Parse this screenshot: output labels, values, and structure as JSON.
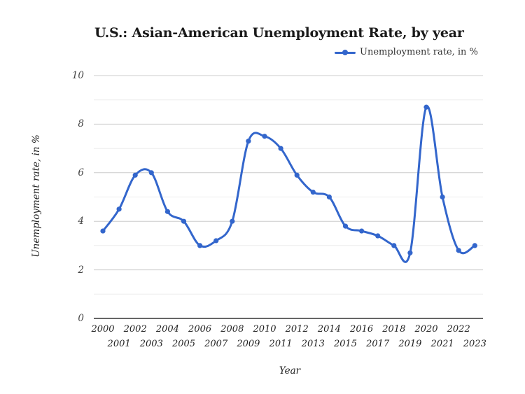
{
  "chart_data": {
    "type": "line",
    "title": "U.S.: Asian-American Unemployment Rate, by year",
    "xlabel": "Year",
    "ylabel": "Unemployment rate, in %",
    "ylim": [
      0,
      10
    ],
    "yticks": [
      0,
      2,
      4,
      6,
      8,
      10
    ],
    "grid": true,
    "legend_position": "top-right",
    "smooth": true,
    "categories": [
      "2000",
      "2001",
      "2002",
      "2003",
      "2004",
      "2005",
      "2006",
      "2007",
      "2008",
      "2009",
      "2010",
      "2011",
      "2012",
      "2013",
      "2014",
      "2015",
      "2016",
      "2017",
      "2018",
      "2019",
      "2020",
      "2021",
      "2022",
      "2023"
    ],
    "series": [
      {
        "name": "Unemployment rate, in %",
        "color": "#3366cc",
        "values": [
          3.6,
          4.5,
          5.9,
          6.0,
          4.4,
          4.0,
          3.0,
          3.2,
          4.0,
          7.3,
          7.5,
          7.0,
          5.9,
          5.2,
          5.0,
          3.8,
          3.6,
          3.4,
          3.0,
          2.7,
          8.7,
          5.0,
          2.8,
          3.0
        ]
      }
    ]
  }
}
